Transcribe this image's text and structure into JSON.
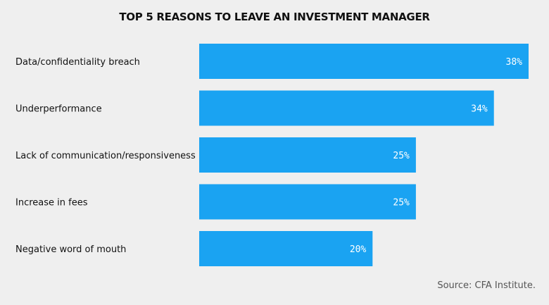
{
  "chart_data": {
    "type": "bar",
    "orientation": "horizontal",
    "title": "TOP 5 REASONS TO LEAVE AN INVESTMENT MANAGER",
    "categories": [
      "Data/confidentiality breach",
      "Underperformance",
      "Lack of communication/responsiveness",
      "Increase in fees",
      "Negative word of mouth"
    ],
    "values": [
      38,
      34,
      25,
      25,
      20
    ],
    "data_labels": [
      "38%",
      "34%",
      "25%",
      "25%",
      "20%"
    ],
    "unit": "%",
    "xlim": [
      0,
      38
    ],
    "grid": false,
    "legend": "none",
    "bar_color": "#1aa3f2",
    "label_color": "#ffffff",
    "text_color": "#111111"
  },
  "source": "Source: CFA Institute."
}
